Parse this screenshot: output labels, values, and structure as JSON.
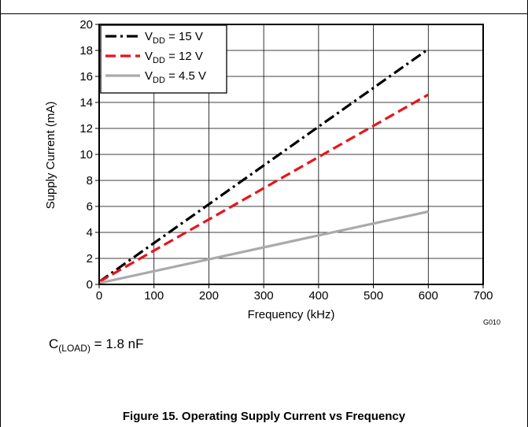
{
  "chart_data": {
    "type": "line",
    "xlabel": "Frequency (kHz)",
    "ylabel": "Supply Current (mA)",
    "xlim": [
      0,
      700
    ],
    "ylim": [
      0,
      20
    ],
    "x_ticks": [
      "0",
      "100",
      "200",
      "300",
      "400",
      "500",
      "600",
      "700"
    ],
    "y_ticks": [
      "0",
      "2",
      "4",
      "6",
      "8",
      "10",
      "12",
      "14",
      "16",
      "18",
      "20"
    ],
    "grid": true,
    "legend_position": "top-left",
    "series": [
      {
        "name_main": "V",
        "name_sub": "DD",
        "name_rest": " = 15 V",
        "color": "#000000",
        "dash": "dash-dot",
        "points": [
          [
            0,
            0.2
          ],
          [
            600,
            18.1
          ]
        ]
      },
      {
        "name_main": "V",
        "name_sub": "DD",
        "name_rest": " = 12 V",
        "color": "#e8141b",
        "dash": "dash",
        "points": [
          [
            0,
            0.2
          ],
          [
            600,
            14.6
          ]
        ]
      },
      {
        "name_main": "V",
        "name_sub": "DD",
        "name_rest": " = 4.5 V",
        "color": "#aaaaaa",
        "dash": "solid",
        "points": [
          [
            0,
            0.1
          ],
          [
            600,
            5.6
          ]
        ]
      }
    ],
    "graph_id": "G010",
    "condition_main": "C",
    "condition_sub": "(LOAD)",
    "condition_rest": " = 1.8 nF",
    "figure_caption": "Figure 15. Operating Supply Current vs Frequency"
  }
}
